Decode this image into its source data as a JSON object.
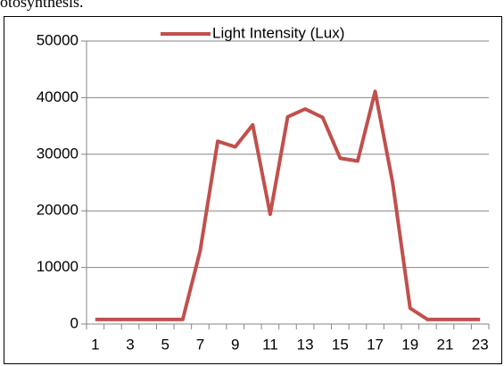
{
  "caption": "otosynthesis.",
  "chart_data": {
    "type": "line",
    "categories": [
      "1",
      null,
      "3",
      null,
      "5",
      null,
      "7",
      null,
      "9",
      null,
      "11",
      null,
      "13",
      null,
      "15",
      null,
      "17",
      null,
      "19",
      null,
      "21",
      null,
      "23"
    ],
    "series": [
      {
        "name": "Light Intensity (Lux)",
        "color": "#c0504d",
        "values": [
          800,
          800,
          800,
          800,
          800,
          800,
          13000,
          32300,
          31300,
          35200,
          19400,
          36600,
          38000,
          36500,
          29300,
          28800,
          41100,
          25000,
          2800,
          800,
          800,
          800,
          800
        ]
      }
    ],
    "ylim": [
      0,
      50000
    ],
    "yticks": [
      0,
      10000,
      20000,
      30000,
      40000,
      50000
    ],
    "grid": true,
    "legend": "top"
  }
}
